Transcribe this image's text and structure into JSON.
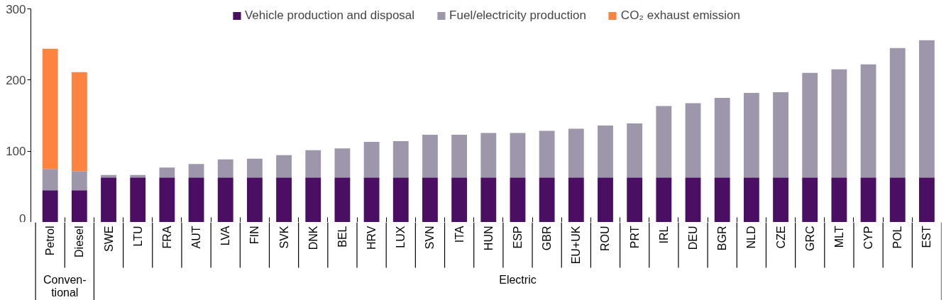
{
  "chart_data": {
    "type": "bar",
    "stacked": true,
    "categories": [
      "Petrol",
      "Diesel",
      "SWE",
      "LTU",
      "FRA",
      "AUT",
      "LVA",
      "FIN",
      "SVK",
      "DNK",
      "BEL",
      "HRV",
      "LUX",
      "SVN",
      "ITA",
      "HUN",
      "ESP",
      "GBR",
      "EU+UK",
      "ROU",
      "PRT",
      "IRL",
      "DEU",
      "BGR",
      "NLD",
      "CZE",
      "GRC",
      "MLT",
      "CYP",
      "POL",
      "EST"
    ],
    "series": [
      {
        "name": "Vehicle production and disposal",
        "color": "#4a0f63",
        "values": [
          45,
          45,
          63,
          63,
          63,
          63,
          63,
          63,
          63,
          63,
          63,
          63,
          63,
          63,
          63,
          63,
          63,
          63,
          63,
          63,
          63,
          63,
          63,
          63,
          63,
          63,
          63,
          63,
          63,
          63,
          63
        ]
      },
      {
        "name": "Fuel/electricity production",
        "color": "#9e96ab",
        "values": [
          30,
          27,
          3.5,
          3.5,
          14,
          19,
          25.5,
          26.5,
          31.5,
          38.5,
          41,
          50,
          51,
          60,
          60,
          62.5,
          62.5,
          65.5,
          68.5,
          73,
          76,
          100.5,
          104.5,
          112,
          119,
          120,
          147,
          152,
          159,
          182,
          193
        ]
      },
      {
        "name": "CO₂ exhaust emission",
        "color": "#ff8340",
        "values": [
          169,
          139,
          null,
          null,
          null,
          null,
          null,
          null,
          null,
          null,
          null,
          null,
          null,
          null,
          null,
          null,
          null,
          null,
          null,
          null,
          null,
          null,
          null,
          null,
          null,
          null,
          null,
          null,
          null,
          null,
          null
        ]
      }
    ],
    "ylim": [
      0,
      300
    ],
    "yticks": [
      0,
      100,
      200,
      300
    ],
    "tick_labels": "y",
    "grid": false,
    "legend": "top",
    "annotations": [
      "Conven-\ntional",
      "Electric"
    ]
  }
}
